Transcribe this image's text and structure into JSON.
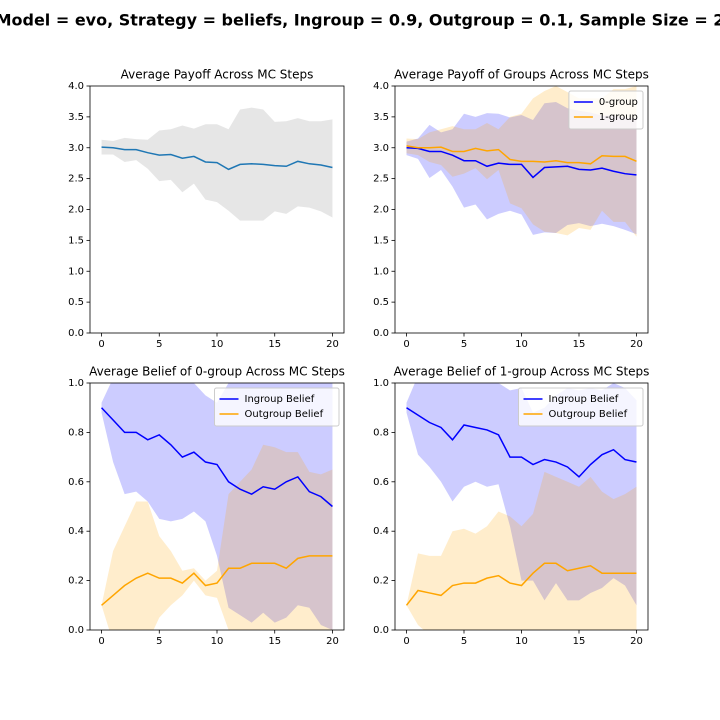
{
  "title": "Model = evo, Strategy = beliefs, Ingroup = 0.9, Outgroup = 0.1, Sample Size = 2",
  "chart_data": [
    {
      "type": "line",
      "title": "Average Payoff Across MC Steps",
      "x": [
        0,
        1,
        2,
        3,
        4,
        5,
        6,
        7,
        8,
        9,
        10,
        11,
        12,
        13,
        14,
        15,
        16,
        17,
        18,
        19,
        20
      ],
      "values": [
        3.01,
        3.0,
        2.97,
        2.97,
        2.92,
        2.88,
        2.89,
        2.83,
        2.86,
        2.77,
        2.76,
        2.65,
        2.73,
        2.74,
        2.73,
        2.71,
        2.7,
        2.78,
        2.74,
        2.72,
        2.68
      ],
      "upper": [
        3.13,
        3.11,
        3.16,
        3.14,
        3.13,
        3.28,
        3.3,
        3.36,
        3.31,
        3.38,
        3.38,
        3.3,
        3.62,
        3.65,
        3.62,
        3.42,
        3.43,
        3.48,
        3.43,
        3.43,
        3.46
      ],
      "lower": [
        2.89,
        2.89,
        2.77,
        2.8,
        2.66,
        2.46,
        2.48,
        2.28,
        2.42,
        2.16,
        2.12,
        1.98,
        1.82,
        1.82,
        1.82,
        1.97,
        1.93,
        2.05,
        2.03,
        1.97,
        1.87
      ],
      "color": "#1f77b4",
      "band_color": "gray",
      "xlim": [
        -1,
        21
      ],
      "xticks": [
        0,
        5,
        10,
        15,
        20
      ],
      "ylim": [
        0,
        4
      ],
      "yticks": [
        {
          "value": 0,
          "label": "0.0"
        },
        0.5,
        {
          "value": 1,
          "label": "1.0"
        },
        1.5,
        {
          "value": 2,
          "label": "2.0"
        },
        2.5,
        {
          "value": 3,
          "label": "3.0"
        },
        3.5,
        {
          "value": 4,
          "label": "4.0"
        }
      ]
    },
    {
      "type": "line",
      "title": "Average Payoff of Groups Across MC Steps",
      "x": [
        0,
        1,
        2,
        3,
        4,
        5,
        6,
        7,
        8,
        9,
        10,
        11,
        12,
        13,
        14,
        15,
        16,
        17,
        18,
        19,
        20
      ],
      "series": [
        {
          "name": "0-group",
          "color": "blue",
          "values": [
            3.0,
            2.99,
            2.94,
            2.94,
            2.88,
            2.79,
            2.79,
            2.7,
            2.75,
            2.73,
            2.73,
            2.52,
            2.68,
            2.69,
            2.7,
            2.65,
            2.64,
            2.67,
            2.62,
            2.58,
            2.56
          ],
          "upper": [
            3.1,
            3.15,
            3.37,
            3.25,
            3.3,
            3.55,
            3.5,
            3.56,
            3.55,
            3.49,
            3.53,
            3.45,
            3.72,
            3.74,
            3.64,
            3.6,
            3.57,
            3.52,
            3.52,
            3.49,
            3.48
          ],
          "lower": [
            2.88,
            2.82,
            2.51,
            2.64,
            2.37,
            2.03,
            2.08,
            1.84,
            1.93,
            1.98,
            1.92,
            1.59,
            1.63,
            1.62,
            1.75,
            1.78,
            1.73,
            1.77,
            1.73,
            1.67,
            1.6
          ]
        },
        {
          "name": "1-group",
          "color": "orange",
          "values": [
            3.03,
            3.0,
            3.0,
            3.01,
            2.94,
            2.94,
            2.99,
            2.95,
            2.97,
            2.81,
            2.78,
            2.78,
            2.77,
            2.79,
            2.76,
            2.76,
            2.74,
            2.87,
            2.86,
            2.86,
            2.78
          ],
          "upper": [
            3.15,
            3.14,
            3.25,
            3.3,
            3.35,
            3.3,
            3.3,
            3.4,
            3.3,
            3.5,
            3.55,
            3.8,
            3.92,
            4.0,
            3.9,
            3.8,
            3.8,
            3.8,
            3.95,
            3.95,
            4.0
          ],
          "lower": [
            2.91,
            2.88,
            2.77,
            2.72,
            2.53,
            2.58,
            2.67,
            2.49,
            2.64,
            2.1,
            2.02,
            1.76,
            1.64,
            1.62,
            1.58,
            1.7,
            1.67,
            1.98,
            1.8,
            1.8,
            1.56
          ]
        }
      ],
      "legend": "upper right",
      "xlim": [
        -1,
        21
      ],
      "xticks": [
        0,
        5,
        10,
        15,
        20
      ],
      "ylim": [
        0,
        4
      ],
      "yticks": [
        {
          "value": 0,
          "label": "0.0"
        },
        0.5,
        {
          "value": 1,
          "label": "1.0"
        },
        1.5,
        {
          "value": 2,
          "label": "2.0"
        },
        2.5,
        {
          "value": 3,
          "label": "3.0"
        },
        3.5,
        {
          "value": 4,
          "label": "4.0"
        }
      ]
    },
    {
      "type": "line",
      "title": "Average Belief of 0-group Across MC Steps",
      "x": [
        0,
        1,
        2,
        3,
        4,
        5,
        6,
        7,
        8,
        9,
        10,
        11,
        12,
        13,
        14,
        15,
        16,
        17,
        18,
        19,
        20
      ],
      "series": [
        {
          "name": "Ingroup Belief",
          "color": "blue",
          "values": [
            0.9,
            0.85,
            0.8,
            0.8,
            0.77,
            0.79,
            0.75,
            0.7,
            0.72,
            0.68,
            0.67,
            0.6,
            0.57,
            0.55,
            0.58,
            0.57,
            0.6,
            0.62,
            0.56,
            0.54,
            0.5
          ],
          "upper": [
            0.92,
            1.02,
            1.05,
            1.07,
            1.03,
            1.12,
            1.07,
            1.0,
            1.0,
            0.95,
            0.92,
            1.0,
            1.0,
            1.05,
            1.05,
            1.05,
            1.1,
            1.1,
            1.05,
            1.03,
            1.0
          ],
          "lower": [
            0.88,
            0.68,
            0.55,
            0.56,
            0.52,
            0.45,
            0.44,
            0.45,
            0.48,
            0.44,
            0.3,
            0.09,
            0.06,
            0.03,
            0.07,
            0.03,
            0.05,
            0.1,
            0.09,
            0.02,
            0.0
          ]
        },
        {
          "name": "Outgroup Belief",
          "color": "orange",
          "values": [
            0.1,
            0.14,
            0.18,
            0.21,
            0.23,
            0.21,
            0.21,
            0.19,
            0.23,
            0.18,
            0.19,
            0.25,
            0.25,
            0.27,
            0.27,
            0.27,
            0.25,
            0.29,
            0.3,
            0.3,
            0.3
          ],
          "upper": [
            0.1,
            0.32,
            0.42,
            0.52,
            0.52,
            0.38,
            0.32,
            0.24,
            0.25,
            0.2,
            0.24,
            0.55,
            0.6,
            0.65,
            0.75,
            0.74,
            0.72,
            0.72,
            0.64,
            0.63,
            0.65
          ],
          "lower": [
            0.1,
            -0.05,
            -0.05,
            -0.1,
            -0.05,
            0.05,
            0.1,
            0.14,
            0.2,
            0.14,
            0.13,
            0.0,
            -0.1,
            -0.1,
            -0.2,
            -0.2,
            -0.2,
            -0.15,
            -0.05,
            -0.05,
            -0.05
          ]
        }
      ],
      "legend": "upper right",
      "xlim": [
        -1,
        21
      ],
      "xticks": [
        0,
        5,
        10,
        15,
        20
      ],
      "ylim": [
        0,
        1
      ],
      "yticks": [
        {
          "value": 0,
          "label": "0.0"
        },
        0.2,
        0.4,
        0.6,
        0.8,
        {
          "value": 1,
          "label": "1.0"
        }
      ]
    },
    {
      "type": "line",
      "title": "Average Belief of 1-group Across MC Steps",
      "x": [
        0,
        1,
        2,
        3,
        4,
        5,
        6,
        7,
        8,
        9,
        10,
        11,
        12,
        13,
        14,
        15,
        16,
        17,
        18,
        19,
        20
      ],
      "series": [
        {
          "name": "Ingroup Belief",
          "color": "blue",
          "values": [
            0.9,
            0.87,
            0.84,
            0.82,
            0.77,
            0.83,
            0.82,
            0.81,
            0.79,
            0.7,
            0.7,
            0.67,
            0.69,
            0.68,
            0.66,
            0.62,
            0.67,
            0.71,
            0.73,
            0.69,
            0.68
          ],
          "upper": [
            0.92,
            1.03,
            1.03,
            1.04,
            1.02,
            1.05,
            1.06,
            1.03,
            1.0,
            0.97,
            0.98,
            0.88,
            0.9,
            0.95,
            0.98,
            0.97,
            0.98,
            0.97,
            1.0,
            0.98,
            0.93
          ],
          "lower": [
            0.88,
            0.71,
            0.66,
            0.6,
            0.52,
            0.58,
            0.6,
            0.58,
            0.59,
            0.42,
            0.2,
            0.2,
            0.12,
            0.19,
            0.12,
            0.12,
            0.15,
            0.17,
            0.21,
            0.18,
            0.1
          ]
        },
        {
          "name": "Outgroup Belief",
          "color": "orange",
          "values": [
            0.1,
            0.16,
            0.15,
            0.14,
            0.18,
            0.19,
            0.19,
            0.21,
            0.22,
            0.19,
            0.18,
            0.23,
            0.27,
            0.27,
            0.24,
            0.25,
            0.26,
            0.23,
            0.23,
            0.23,
            0.23
          ],
          "upper": [
            0.1,
            0.31,
            0.3,
            0.3,
            0.4,
            0.41,
            0.39,
            0.42,
            0.48,
            0.46,
            0.42,
            0.47,
            0.64,
            0.62,
            0.6,
            0.58,
            0.62,
            0.56,
            0.53,
            0.55,
            0.58
          ],
          "lower": [
            0.1,
            0.02,
            -0.02,
            -0.02,
            -0.03,
            -0.03,
            -0.02,
            0.0,
            -0.03,
            -0.05,
            -0.05,
            -0.02,
            -0.1,
            -0.08,
            -0.12,
            -0.08,
            -0.1,
            -0.1,
            -0.07,
            -0.09,
            -0.12
          ]
        }
      ],
      "legend": "upper right",
      "xlim": [
        -1,
        21
      ],
      "xticks": [
        0,
        5,
        10,
        15,
        20
      ],
      "ylim": [
        0,
        1
      ],
      "yticks": [
        {
          "value": 0,
          "label": "0.0"
        },
        0.2,
        0.4,
        0.6,
        0.8,
        {
          "value": 1,
          "label": "1.0"
        }
      ]
    }
  ]
}
